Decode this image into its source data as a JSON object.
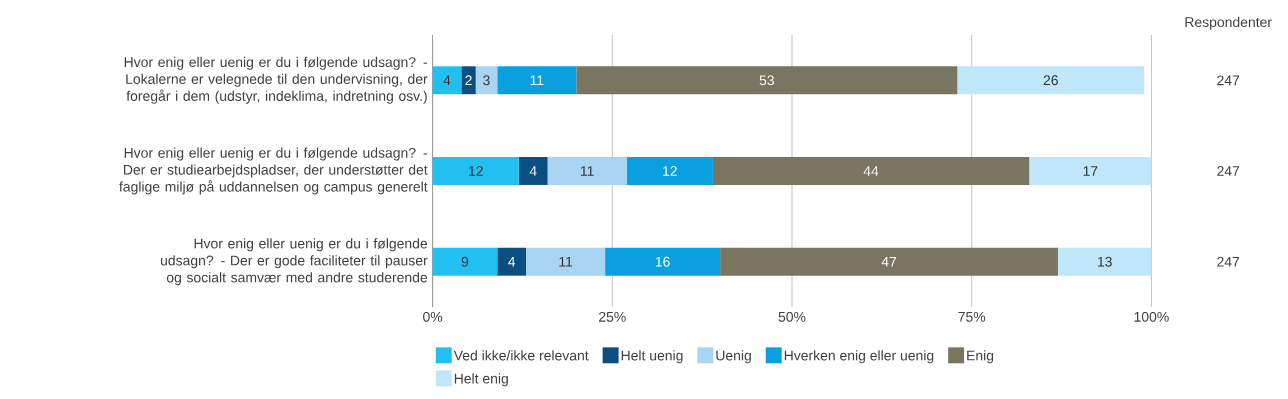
{
  "chart_data": {
    "type": "bar",
    "orientation": "horizontal",
    "stacked": true,
    "data_labels": true,
    "grid": "x",
    "legend": "bottom",
    "categories": [
      "Hvor enig eller uenig er du i følgende udsagn? - Lokalerne er velegnede til den undervisning, der foregår i dem (udstyr, indeklima, indretning osv.)",
      "Hvor enig eller uenig er du i følgende udsagn? - Der er studiearbejdspladser, der understøtter det faglige miljø på uddannelsen og campus generelt",
      "Hvor enig eller uenig er du i følgende udsagn? - Der er gode faciliteter til pauser og socialt samvær med andre studerende"
    ],
    "series": [
      {
        "name": "Ved ikke/ikke relevant",
        "color": "#22c0f0",
        "values": [
          4,
          12,
          9
        ]
      },
      {
        "name": "Helt uenig",
        "color": "#0b4f82",
        "values": [
          2,
          4,
          4
        ]
      },
      {
        "name": "Uenig",
        "color": "#a9d5f3",
        "values": [
          3,
          11,
          11
        ]
      },
      {
        "name": "Hverken enig eller uenig",
        "color": "#0aa0e0",
        "values": [
          11,
          12,
          16
        ]
      },
      {
        "name": "Enig",
        "color": "#7a7561",
        "values": [
          53,
          44,
          47
        ]
      },
      {
        "name": "Helt enig",
        "color": "#bfe7f9",
        "values": [
          26,
          17,
          13
        ]
      }
    ],
    "xlim": [
      0,
      100
    ],
    "xticks": [
      {
        "value": 0,
        "label": "0%"
      },
      {
        "value": 25,
        "label": "25%"
      },
      {
        "value": 50,
        "label": "50%"
      },
      {
        "value": 75,
        "label": "75%"
      },
      {
        "value": 100,
        "label": "100%"
      }
    ],
    "annotations": [
      "Respondenter",
      "247",
      "247",
      "247"
    ]
  }
}
